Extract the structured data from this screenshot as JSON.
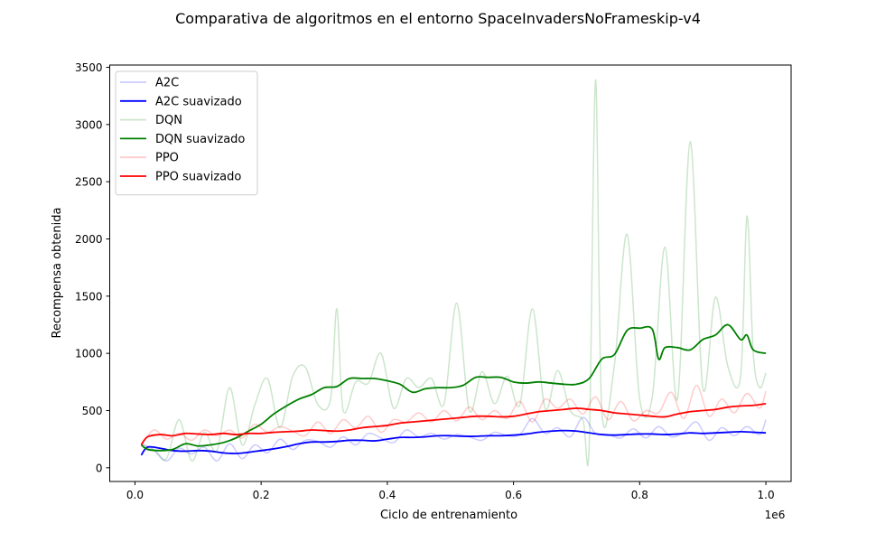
{
  "chart_data": {
    "type": "line",
    "title": "Comparativa de algoritmos en el entorno SpaceInvadersNoFrameskip-v4",
    "xlabel": "Ciclo de entrenamiento",
    "ylabel": "Recompensa obtenida",
    "x_offset_label": "1e6",
    "xlim": [
      -0.04,
      1.04
    ],
    "ylim": [
      -120,
      3520
    ],
    "xticks": [
      0.0,
      0.2,
      0.4,
      0.6,
      0.8,
      1.0
    ],
    "xtick_labels": [
      "0.0",
      "0.2",
      "0.4",
      "0.6",
      "0.8",
      "1.0"
    ],
    "yticks": [
      0,
      500,
      1000,
      1500,
      2000,
      2500,
      3000,
      3500
    ],
    "ytick_labels": [
      "0",
      "500",
      "1000",
      "1500",
      "2000",
      "2500",
      "3000",
      "3500"
    ],
    "grid": false,
    "legend_position": "upper-left",
    "series": [
      {
        "name": "A2C",
        "color": "#0000ff",
        "opacity": 0.2,
        "x": [
          0.01,
          0.03,
          0.05,
          0.07,
          0.09,
          0.11,
          0.13,
          0.15,
          0.17,
          0.19,
          0.21,
          0.23,
          0.25,
          0.27,
          0.29,
          0.31,
          0.33,
          0.35,
          0.37,
          0.39,
          0.41,
          0.43,
          0.45,
          0.47,
          0.49,
          0.51,
          0.53,
          0.55,
          0.57,
          0.59,
          0.61,
          0.63,
          0.65,
          0.67,
          0.69,
          0.71,
          0.73,
          0.75,
          0.77,
          0.79,
          0.81,
          0.83,
          0.85,
          0.87,
          0.89,
          0.91,
          0.93,
          0.95,
          0.97,
          0.99,
          1.0
        ],
        "y": [
          210,
          160,
          60,
          170,
          120,
          180,
          60,
          210,
          80,
          200,
          130,
          250,
          160,
          240,
          230,
          180,
          270,
          200,
          300,
          260,
          220,
          330,
          270,
          300,
          250,
          290,
          270,
          240,
          310,
          280,
          290,
          430,
          300,
          350,
          270,
          440,
          300,
          290,
          260,
          340,
          260,
          360,
          270,
          310,
          400,
          240,
          350,
          280,
          360,
          290,
          420
        ]
      },
      {
        "name": "A2C suavizado",
        "color": "#0000ff",
        "opacity": 1,
        "x": [
          0.01,
          0.02,
          0.04,
          0.06,
          0.08,
          0.1,
          0.12,
          0.14,
          0.16,
          0.18,
          0.2,
          0.22,
          0.24,
          0.26,
          0.28,
          0.3,
          0.32,
          0.34,
          0.36,
          0.38,
          0.4,
          0.42,
          0.44,
          0.46,
          0.48,
          0.5,
          0.52,
          0.54,
          0.56,
          0.58,
          0.6,
          0.62,
          0.64,
          0.66,
          0.68,
          0.7,
          0.72,
          0.74,
          0.76,
          0.78,
          0.8,
          0.82,
          0.84,
          0.86,
          0.88,
          0.9,
          0.92,
          0.94,
          0.96,
          0.98,
          1.0
        ],
        "y": [
          110,
          180,
          170,
          150,
          145,
          150,
          145,
          130,
          125,
          135,
          150,
          165,
          185,
          210,
          225,
          225,
          230,
          240,
          240,
          235,
          250,
          265,
          265,
          270,
          280,
          280,
          275,
          275,
          280,
          280,
          285,
          295,
          310,
          320,
          325,
          320,
          305,
          290,
          285,
          290,
          295,
          295,
          290,
          295,
          305,
          300,
          305,
          310,
          315,
          310,
          305
        ]
      },
      {
        "name": "DQN",
        "color": "#008000",
        "opacity": 0.2,
        "x": [
          0.01,
          0.03,
          0.05,
          0.07,
          0.09,
          0.11,
          0.13,
          0.15,
          0.17,
          0.19,
          0.21,
          0.23,
          0.25,
          0.27,
          0.29,
          0.31,
          0.32,
          0.33,
          0.35,
          0.37,
          0.39,
          0.41,
          0.43,
          0.45,
          0.47,
          0.49,
          0.51,
          0.53,
          0.55,
          0.57,
          0.59,
          0.61,
          0.63,
          0.65,
          0.67,
          0.69,
          0.71,
          0.72,
          0.73,
          0.74,
          0.76,
          0.78,
          0.8,
          0.82,
          0.84,
          0.86,
          0.88,
          0.9,
          0.92,
          0.94,
          0.96,
          0.97,
          0.98,
          0.99,
          1.0
        ],
        "y": [
          200,
          150,
          80,
          420,
          60,
          310,
          150,
          700,
          200,
          550,
          780,
          350,
          800,
          880,
          550,
          600,
          1390,
          500,
          750,
          740,
          1000,
          520,
          780,
          700,
          780,
          560,
          1440,
          500,
          840,
          560,
          800,
          550,
          1390,
          520,
          850,
          500,
          420,
          200,
          3390,
          500,
          900,
          2040,
          600,
          620,
          1930,
          600,
          2850,
          700,
          1490,
          880,
          800,
          2200,
          1000,
          700,
          830
        ]
      },
      {
        "name": "DQN suavizado",
        "color": "#008000",
        "opacity": 1,
        "x": [
          0.01,
          0.02,
          0.04,
          0.06,
          0.08,
          0.1,
          0.12,
          0.14,
          0.16,
          0.18,
          0.2,
          0.22,
          0.24,
          0.26,
          0.28,
          0.3,
          0.32,
          0.34,
          0.36,
          0.38,
          0.4,
          0.42,
          0.44,
          0.46,
          0.48,
          0.5,
          0.52,
          0.54,
          0.56,
          0.58,
          0.6,
          0.62,
          0.64,
          0.66,
          0.68,
          0.7,
          0.72,
          0.74,
          0.76,
          0.78,
          0.8,
          0.82,
          0.83,
          0.84,
          0.86,
          0.88,
          0.9,
          0.92,
          0.94,
          0.96,
          0.97,
          0.98,
          1.0
        ],
        "y": [
          200,
          160,
          150,
          160,
          210,
          190,
          200,
          220,
          260,
          320,
          380,
          470,
          540,
          600,
          640,
          700,
          710,
          780,
          780,
          780,
          760,
          730,
          660,
          690,
          700,
          700,
          720,
          790,
          790,
          790,
          750,
          740,
          750,
          740,
          730,
          730,
          780,
          950,
          990,
          1200,
          1220,
          1210,
          950,
          1050,
          1050,
          1030,
          1120,
          1160,
          1250,
          1120,
          1160,
          1030,
          1000
        ]
      },
      {
        "name": "PPO",
        "color": "#ff0000",
        "opacity": 0.2,
        "x": [
          0.01,
          0.03,
          0.05,
          0.07,
          0.09,
          0.11,
          0.13,
          0.15,
          0.17,
          0.19,
          0.21,
          0.23,
          0.25,
          0.27,
          0.29,
          0.31,
          0.33,
          0.35,
          0.37,
          0.39,
          0.41,
          0.43,
          0.45,
          0.47,
          0.49,
          0.51,
          0.53,
          0.55,
          0.57,
          0.59,
          0.61,
          0.63,
          0.65,
          0.67,
          0.69,
          0.71,
          0.73,
          0.75,
          0.77,
          0.79,
          0.81,
          0.83,
          0.85,
          0.87,
          0.89,
          0.91,
          0.93,
          0.95,
          0.97,
          0.99,
          1.0
        ],
        "y": [
          200,
          330,
          250,
          300,
          240,
          330,
          280,
          330,
          260,
          380,
          310,
          360,
          320,
          280,
          400,
          300,
          420,
          350,
          450,
          310,
          420,
          400,
          480,
          400,
          500,
          410,
          530,
          420,
          500,
          430,
          580,
          400,
          600,
          520,
          600,
          470,
          620,
          420,
          580,
          410,
          500,
          480,
          660,
          430,
          720,
          450,
          600,
          480,
          650,
          520,
          670
        ]
      },
      {
        "name": "PPO suavizado",
        "color": "#ff0000",
        "opacity": 1,
        "x": [
          0.01,
          0.02,
          0.04,
          0.06,
          0.08,
          0.1,
          0.12,
          0.14,
          0.16,
          0.18,
          0.2,
          0.22,
          0.24,
          0.26,
          0.28,
          0.3,
          0.32,
          0.34,
          0.36,
          0.38,
          0.4,
          0.42,
          0.44,
          0.46,
          0.48,
          0.5,
          0.52,
          0.54,
          0.56,
          0.58,
          0.6,
          0.62,
          0.64,
          0.66,
          0.68,
          0.7,
          0.72,
          0.74,
          0.76,
          0.78,
          0.8,
          0.82,
          0.84,
          0.86,
          0.88,
          0.9,
          0.92,
          0.94,
          0.96,
          0.98,
          1.0
        ],
        "y": [
          200,
          270,
          290,
          280,
          300,
          295,
          290,
          300,
          290,
          300,
          300,
          310,
          315,
          320,
          330,
          325,
          320,
          330,
          350,
          360,
          370,
          390,
          400,
          410,
          420,
          430,
          440,
          450,
          450,
          445,
          450,
          470,
          490,
          500,
          510,
          520,
          510,
          500,
          480,
          470,
          460,
          450,
          445,
          470,
          490,
          500,
          510,
          530,
          540,
          545,
          560
        ]
      }
    ]
  }
}
